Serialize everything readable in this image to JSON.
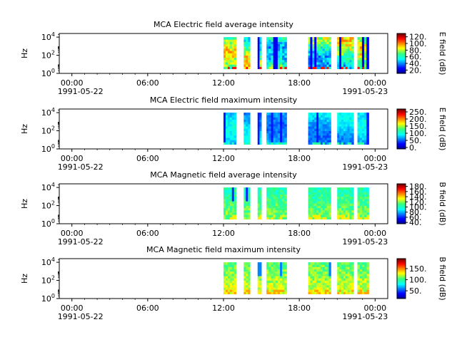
{
  "chart_data": [
    {
      "type": "heatmap",
      "title": "MCA  Electric field average intensity",
      "ylabel": "Hz",
      "yticks": [
        "10^0",
        "10^2",
        "10^4"
      ],
      "yscale": "log",
      "ylim_exp": [
        0,
        4.4
      ],
      "xlim_hours": [
        -1,
        25
      ],
      "xticks": [
        {
          "hour": 0,
          "label": "00:00"
        },
        {
          "hour": 6,
          "label": "06:00"
        },
        {
          "hour": 12,
          "label": "12:00"
        },
        {
          "hour": 18,
          "label": "18:00"
        },
        {
          "hour": 24,
          "label": "00:00"
        }
      ],
      "date_start": "1991-05-22",
      "date_end": "1991-05-23",
      "colorbar": {
        "label": "E field (dB)",
        "ticks": [
          "20.",
          "40.",
          "60.",
          "80.",
          "100.",
          "120."
        ],
        "tick_values": [
          20,
          40,
          60,
          80,
          100,
          120
        ],
        "vmin": 10,
        "vmax": 130
      },
      "data_segments_hours": [
        [
          12.0,
          13.0
        ],
        [
          13.6,
          14.1
        ],
        [
          14.7,
          15.0
        ],
        [
          15.4,
          17.0
        ],
        [
          18.7,
          20.5
        ],
        [
          21.0,
          22.3
        ],
        [
          22.6,
          23.5
        ]
      ],
      "value_range_db": [
        20,
        115
      ]
    },
    {
      "type": "heatmap",
      "title": "MCA  Electric field maximum intensity",
      "ylabel": "Hz",
      "yticks": [
        "10^0",
        "10^2",
        "10^4"
      ],
      "yscale": "log",
      "ylim_exp": [
        0,
        4.4
      ],
      "xlim_hours": [
        -1,
        25
      ],
      "xticks": [
        {
          "hour": 0,
          "label": "00:00"
        },
        {
          "hour": 6,
          "label": "06:00"
        },
        {
          "hour": 12,
          "label": "12:00"
        },
        {
          "hour": 18,
          "label": "18:00"
        },
        {
          "hour": 24,
          "label": "00:00"
        }
      ],
      "date_start": "1991-05-22",
      "date_end": "1991-05-23",
      "colorbar": {
        "label": "E field (dB)",
        "ticks": [
          "0.",
          "50.",
          "100.",
          "150.",
          "200.",
          "250."
        ],
        "tick_values": [
          0,
          50,
          100,
          150,
          200,
          250
        ],
        "vmin": -10,
        "vmax": 270
      },
      "data_segments_hours": [
        [
          12.0,
          13.0
        ],
        [
          13.6,
          14.1
        ],
        [
          14.7,
          15.0
        ],
        [
          15.4,
          17.0
        ],
        [
          18.7,
          20.5
        ],
        [
          21.0,
          22.3
        ],
        [
          22.6,
          23.5
        ]
      ],
      "value_range_db": [
        30,
        120
      ]
    },
    {
      "type": "heatmap",
      "title": "MCA  Magnetic field average intensity",
      "ylabel": "Hz",
      "yticks": [
        "10^0",
        "10^2",
        "10^4"
      ],
      "yscale": "log",
      "ylim_exp": [
        0,
        4.4
      ],
      "xlim_hours": [
        -1,
        25
      ],
      "xticks": [
        {
          "hour": 0,
          "label": "00:00"
        },
        {
          "hour": 6,
          "label": "06:00"
        },
        {
          "hour": 12,
          "label": "12:00"
        },
        {
          "hour": 18,
          "label": "18:00"
        },
        {
          "hour": 24,
          "label": "00:00"
        }
      ],
      "date_start": "1991-05-22",
      "date_end": "1991-05-23",
      "colorbar": {
        "label": "B field (dB)",
        "ticks": [
          "40.",
          "60.",
          "80.",
          "100.",
          "120.",
          "140.",
          "160.",
          "180."
        ],
        "tick_values": [
          40,
          60,
          80,
          100,
          120,
          140,
          160,
          180
        ],
        "vmin": 35,
        "vmax": 190
      },
      "data_segments_hours": [
        [
          12.0,
          13.0
        ],
        [
          13.6,
          14.1
        ],
        [
          14.7,
          15.0
        ],
        [
          15.4,
          17.0
        ],
        [
          18.7,
          20.5
        ],
        [
          21.0,
          22.3
        ],
        [
          22.6,
          23.5
        ]
      ],
      "value_range_db": [
        60,
        150
      ]
    },
    {
      "type": "heatmap",
      "title": "MCA  Magnetic field maximum intensity",
      "ylabel": "Hz",
      "yticks": [
        "10^0",
        "10^2",
        "10^4"
      ],
      "yscale": "log",
      "ylim_exp": [
        0,
        4.4
      ],
      "xlim_hours": [
        -1,
        25
      ],
      "xticks": [
        {
          "hour": 0,
          "label": "00:00"
        },
        {
          "hour": 6,
          "label": "06:00"
        },
        {
          "hour": 12,
          "label": "12:00"
        },
        {
          "hour": 18,
          "label": "18:00"
        },
        {
          "hour": 24,
          "label": "00:00"
        }
      ],
      "date_start": "1991-05-22",
      "date_end": "1991-05-23",
      "colorbar": {
        "label": "B field (dB)",
        "ticks": [
          "50.",
          "100.",
          "150."
        ],
        "tick_values": [
          50,
          100,
          150
        ],
        "vmin": 15,
        "vmax": 195
      },
      "data_segments_hours": [
        [
          12.0,
          13.0
        ],
        [
          13.6,
          14.1
        ],
        [
          14.7,
          15.0
        ],
        [
          15.4,
          17.0
        ],
        [
          18.7,
          20.5
        ],
        [
          21.0,
          22.3
        ],
        [
          22.6,
          23.5
        ]
      ],
      "value_range_db": [
        60,
        160
      ]
    }
  ]
}
